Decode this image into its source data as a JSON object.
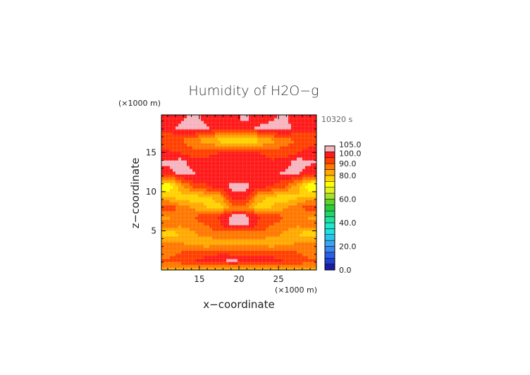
{
  "chart_data": {
    "type": "heatmap",
    "title": "Humidity of H2O−g",
    "time_label": "10320 s",
    "xlabel": "x−coordinate",
    "ylabel": "z−coordinate",
    "x_unit": "(×1000 m)",
    "y_unit": "(×1000 m)",
    "xlim": [
      10.2,
      29.8
    ],
    "ylim": [
      0,
      19.8
    ],
    "x_ticks": [
      15,
      20,
      25
    ],
    "y_ticks": [
      5,
      10,
      15
    ],
    "colorbar": {
      "levels": [
        0,
        5,
        10,
        15,
        20,
        25,
        30,
        35,
        40,
        45,
        50,
        55,
        60,
        65,
        70,
        75,
        80,
        85,
        90,
        95,
        100,
        105
      ],
      "labels": [
        {
          "value": 0,
          "text": "0.0"
        },
        {
          "value": 20,
          "text": "20.0"
        },
        {
          "value": 40,
          "text": "40.0"
        },
        {
          "value": 60,
          "text": "60.0"
        },
        {
          "value": 80,
          "text": "80.0"
        },
        {
          "value": 90,
          "text": "90.0"
        },
        {
          "value": 100,
          "text": "100.0"
        },
        {
          "value": 105,
          "text": "105.0"
        }
      ],
      "colors": [
        "#1a1aa6",
        "#1f3fd0",
        "#2a60e8",
        "#3a86f0",
        "#3aa6f0",
        "#28c4f0",
        "#22dede",
        "#1ee8c8",
        "#20e0a0",
        "#22d46e",
        "#2acc3a",
        "#60d22a",
        "#a6e02a",
        "#e0f020",
        "#ffff00",
        "#ffd200",
        "#ffa800",
        "#ff7800",
        "#ff4000",
        "#ff1a1a",
        "#f6b4be"
      ]
    },
    "field_rows_z": [
      19.5,
      18.2,
      16.6,
      15.0,
      13.8,
      12.4,
      10.7,
      9.3,
      8.0,
      6.9,
      5.8,
      4.6,
      3.5,
      2.3,
      1.2,
      0.3
    ],
    "field_rows": [
      [
        96,
        98,
        102,
        98,
        96,
        97,
        102,
        96,
        98,
        102,
        96,
        97
      ],
      [
        96,
        102,
        104,
        101,
        97,
        96,
        98,
        101,
        104,
        103,
        97,
        96
      ],
      [
        92,
        90,
        86,
        82,
        78,
        74,
        74,
        78,
        83,
        88,
        90,
        93
      ],
      [
        96,
        95,
        92,
        94,
        95,
        96,
        96,
        95,
        93,
        92,
        95,
        97
      ],
      [
        101,
        103,
        97,
        96,
        98,
        97,
        97,
        98,
        96,
        97,
        103,
        101
      ],
      [
        97,
        102,
        101,
        96,
        95,
        96,
        96,
        95,
        97,
        101,
        101,
        96
      ],
      [
        70,
        82,
        92,
        95,
        97,
        102,
        102,
        97,
        95,
        91,
        82,
        70
      ],
      [
        80,
        78,
        76,
        79,
        82,
        98,
        98,
        82,
        79,
        76,
        79,
        82
      ],
      [
        95,
        88,
        84,
        80,
        78,
        86,
        86,
        78,
        80,
        84,
        88,
        94
      ],
      [
        84,
        88,
        90,
        93,
        96,
        102,
        102,
        96,
        93,
        90,
        88,
        84
      ],
      [
        88,
        86,
        88,
        90,
        94,
        101,
        101,
        94,
        90,
        88,
        86,
        88
      ],
      [
        76,
        80,
        84,
        88,
        88,
        86,
        86,
        88,
        88,
        84,
        80,
        76
      ],
      [
        88,
        86,
        82,
        80,
        82,
        84,
        84,
        82,
        80,
        82,
        86,
        88
      ],
      [
        86,
        90,
        92,
        93,
        94,
        92,
        92,
        94,
        93,
        92,
        90,
        86
      ],
      [
        92,
        94,
        95,
        97,
        98,
        102,
        98,
        96,
        97,
        95,
        94,
        92
      ],
      [
        84,
        82,
        84,
        82,
        84,
        83,
        84,
        82,
        84,
        82,
        83,
        84
      ]
    ]
  }
}
